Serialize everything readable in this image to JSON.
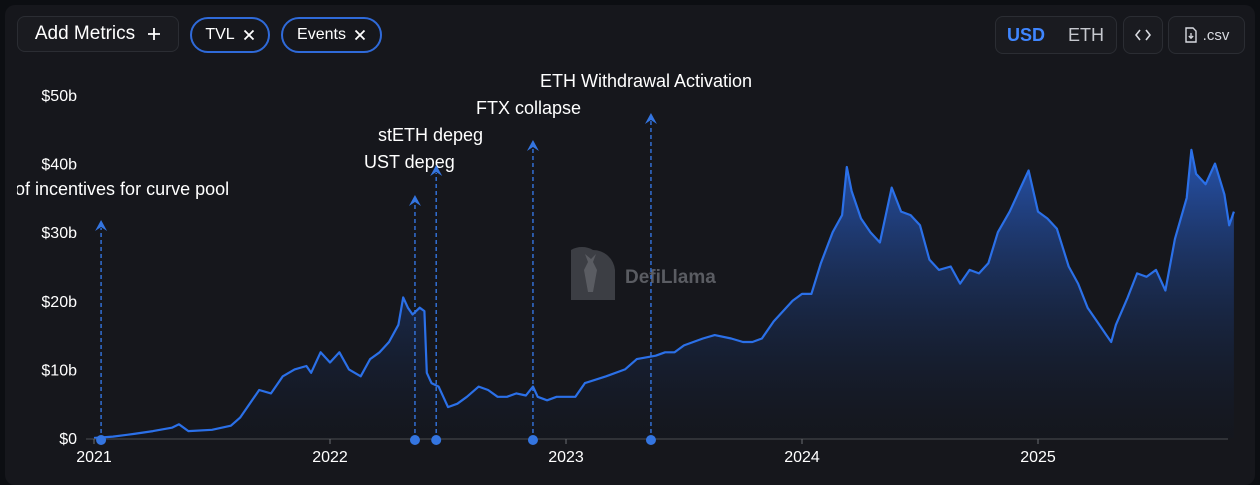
{
  "toolbar": {
    "add_metrics_label": "Add Metrics",
    "add_icon": "plus-icon",
    "metric_pills": [
      {
        "label": "TVL",
        "icon": "close-icon"
      },
      {
        "label": "Events",
        "icon": "close-icon"
      }
    ],
    "denomination": {
      "options": [
        "USD",
        "ETH"
      ],
      "selected": "USD"
    },
    "embed_icon": "code-icon",
    "csv_label": ".csv",
    "csv_icon": "file-download-icon"
  },
  "watermark": {
    "text": "DefiLlama",
    "icon": "llama-logo-icon"
  },
  "colors": {
    "accent": "#2f6ad9",
    "line": "#2b70e8",
    "event": "#3475e0",
    "active": "#3f86ff"
  },
  "chart_data": {
    "type": "area",
    "title": "",
    "xlabel": "",
    "ylabel": "",
    "series_name": "TVL",
    "unit": "USD",
    "x_range": [
      "2021-01-01",
      "2025-10-20"
    ],
    "ylim": [
      0,
      50
    ],
    "y_ticks": [
      {
        "value": 0,
        "label": "$0"
      },
      {
        "value": 10,
        "label": "$10b"
      },
      {
        "value": 20,
        "label": "$20b"
      },
      {
        "value": 30,
        "label": "$30b"
      },
      {
        "value": 40,
        "label": "$40b"
      },
      {
        "value": 50,
        "label": "$50b"
      }
    ],
    "x_ticks": [
      {
        "value": 2021.0,
        "label": "2021"
      },
      {
        "value": 2022.0,
        "label": "2022"
      },
      {
        "value": 2023.0,
        "label": "2023"
      },
      {
        "value": 2024.0,
        "label": "2024"
      },
      {
        "value": 2025.0,
        "label": "2025"
      }
    ],
    "grid": false,
    "legend": "none",
    "points": [
      [
        2021.0,
        0.0
      ],
      [
        2021.08,
        0.2
      ],
      [
        2021.17,
        0.6
      ],
      [
        2021.25,
        1.0
      ],
      [
        2021.33,
        1.5
      ],
      [
        2021.36,
        2.0
      ],
      [
        2021.4,
        1.0
      ],
      [
        2021.5,
        1.2
      ],
      [
        2021.58,
        1.8
      ],
      [
        2021.62,
        3.0
      ],
      [
        2021.67,
        5.5
      ],
      [
        2021.7,
        7.0
      ],
      [
        2021.75,
        6.5
      ],
      [
        2021.8,
        9.0
      ],
      [
        2021.85,
        10.0
      ],
      [
        2021.9,
        10.5
      ],
      [
        2021.92,
        9.5
      ],
      [
        2021.96,
        12.5
      ],
      [
        2022.0,
        11.0
      ],
      [
        2022.04,
        12.5
      ],
      [
        2022.08,
        10.0
      ],
      [
        2022.13,
        9.0
      ],
      [
        2022.17,
        11.5
      ],
      [
        2022.21,
        12.5
      ],
      [
        2022.25,
        14.0
      ],
      [
        2022.29,
        16.5
      ],
      [
        2022.31,
        20.5
      ],
      [
        2022.33,
        19.0
      ],
      [
        2022.35,
        18.0
      ],
      [
        2022.38,
        19.0
      ],
      [
        2022.4,
        18.5
      ],
      [
        2022.41,
        9.5
      ],
      [
        2022.43,
        8.0
      ],
      [
        2022.46,
        7.5
      ],
      [
        2022.48,
        6.0
      ],
      [
        2022.5,
        4.5
      ],
      [
        2022.54,
        5.0
      ],
      [
        2022.58,
        6.0
      ],
      [
        2022.63,
        7.5
      ],
      [
        2022.67,
        7.0
      ],
      [
        2022.71,
        6.0
      ],
      [
        2022.75,
        6.0
      ],
      [
        2022.79,
        6.5
      ],
      [
        2022.83,
        6.2
      ],
      [
        2022.86,
        7.5
      ],
      [
        2022.88,
        6.0
      ],
      [
        2022.92,
        5.5
      ],
      [
        2022.96,
        6.0
      ],
      [
        2023.0,
        6.0
      ],
      [
        2023.04,
        6.0
      ],
      [
        2023.08,
        8.0
      ],
      [
        2023.17,
        9.0
      ],
      [
        2023.25,
        10.0
      ],
      [
        2023.3,
        11.5
      ],
      [
        2023.38,
        12.0
      ],
      [
        2023.42,
        12.5
      ],
      [
        2023.46,
        12.5
      ],
      [
        2023.5,
        13.5
      ],
      [
        2023.58,
        14.5
      ],
      [
        2023.63,
        15.0
      ],
      [
        2023.7,
        14.5
      ],
      [
        2023.75,
        14.0
      ],
      [
        2023.79,
        14.0
      ],
      [
        2023.83,
        14.5
      ],
      [
        2023.88,
        17.0
      ],
      [
        2023.92,
        18.5
      ],
      [
        2023.96,
        20.0
      ],
      [
        2024.0,
        21.0
      ],
      [
        2024.04,
        21.0
      ],
      [
        2024.08,
        25.5
      ],
      [
        2024.13,
        30.0
      ],
      [
        2024.17,
        32.5
      ],
      [
        2024.19,
        39.5
      ],
      [
        2024.21,
        36.0
      ],
      [
        2024.25,
        32.0
      ],
      [
        2024.29,
        30.0
      ],
      [
        2024.33,
        28.5
      ],
      [
        2024.38,
        36.5
      ],
      [
        2024.42,
        33.0
      ],
      [
        2024.46,
        32.5
      ],
      [
        2024.5,
        31.0
      ],
      [
        2024.54,
        26.0
      ],
      [
        2024.58,
        24.5
      ],
      [
        2024.63,
        25.0
      ],
      [
        2024.67,
        22.5
      ],
      [
        2024.71,
        24.5
      ],
      [
        2024.75,
        24.0
      ],
      [
        2024.79,
        25.5
      ],
      [
        2024.83,
        30.0
      ],
      [
        2024.88,
        33.0
      ],
      [
        2024.92,
        36.0
      ],
      [
        2024.96,
        39.0
      ],
      [
        2025.0,
        33.0
      ],
      [
        2025.04,
        32.0
      ],
      [
        2025.08,
        30.5
      ],
      [
        2025.13,
        25.0
      ],
      [
        2025.17,
        22.5
      ],
      [
        2025.21,
        19.0
      ],
      [
        2025.25,
        17.0
      ],
      [
        2025.29,
        15.0
      ],
      [
        2025.31,
        14.0
      ],
      [
        2025.33,
        16.5
      ],
      [
        2025.38,
        20.5
      ],
      [
        2025.42,
        24.0
      ],
      [
        2025.46,
        23.5
      ],
      [
        2025.5,
        24.5
      ],
      [
        2025.54,
        21.5
      ],
      [
        2025.58,
        29.0
      ],
      [
        2025.63,
        35.0
      ],
      [
        2025.65,
        42.0
      ],
      [
        2025.67,
        38.5
      ],
      [
        2025.71,
        37.0
      ],
      [
        2025.75,
        40.0
      ],
      [
        2025.79,
        35.5
      ],
      [
        2025.81,
        31.0
      ],
      [
        2025.83,
        33.0
      ]
    ],
    "events": [
      {
        "label": "of incentives for curve pool",
        "date": 2021.03
      },
      {
        "label": "UST depeg",
        "date": 2022.36
      },
      {
        "label": "stETH depeg",
        "date": 2022.45
      },
      {
        "label": "FTX collapse",
        "date": 2022.86
      },
      {
        "label": "ETH Withdrawal Activation",
        "date": 2023.36
      }
    ]
  }
}
